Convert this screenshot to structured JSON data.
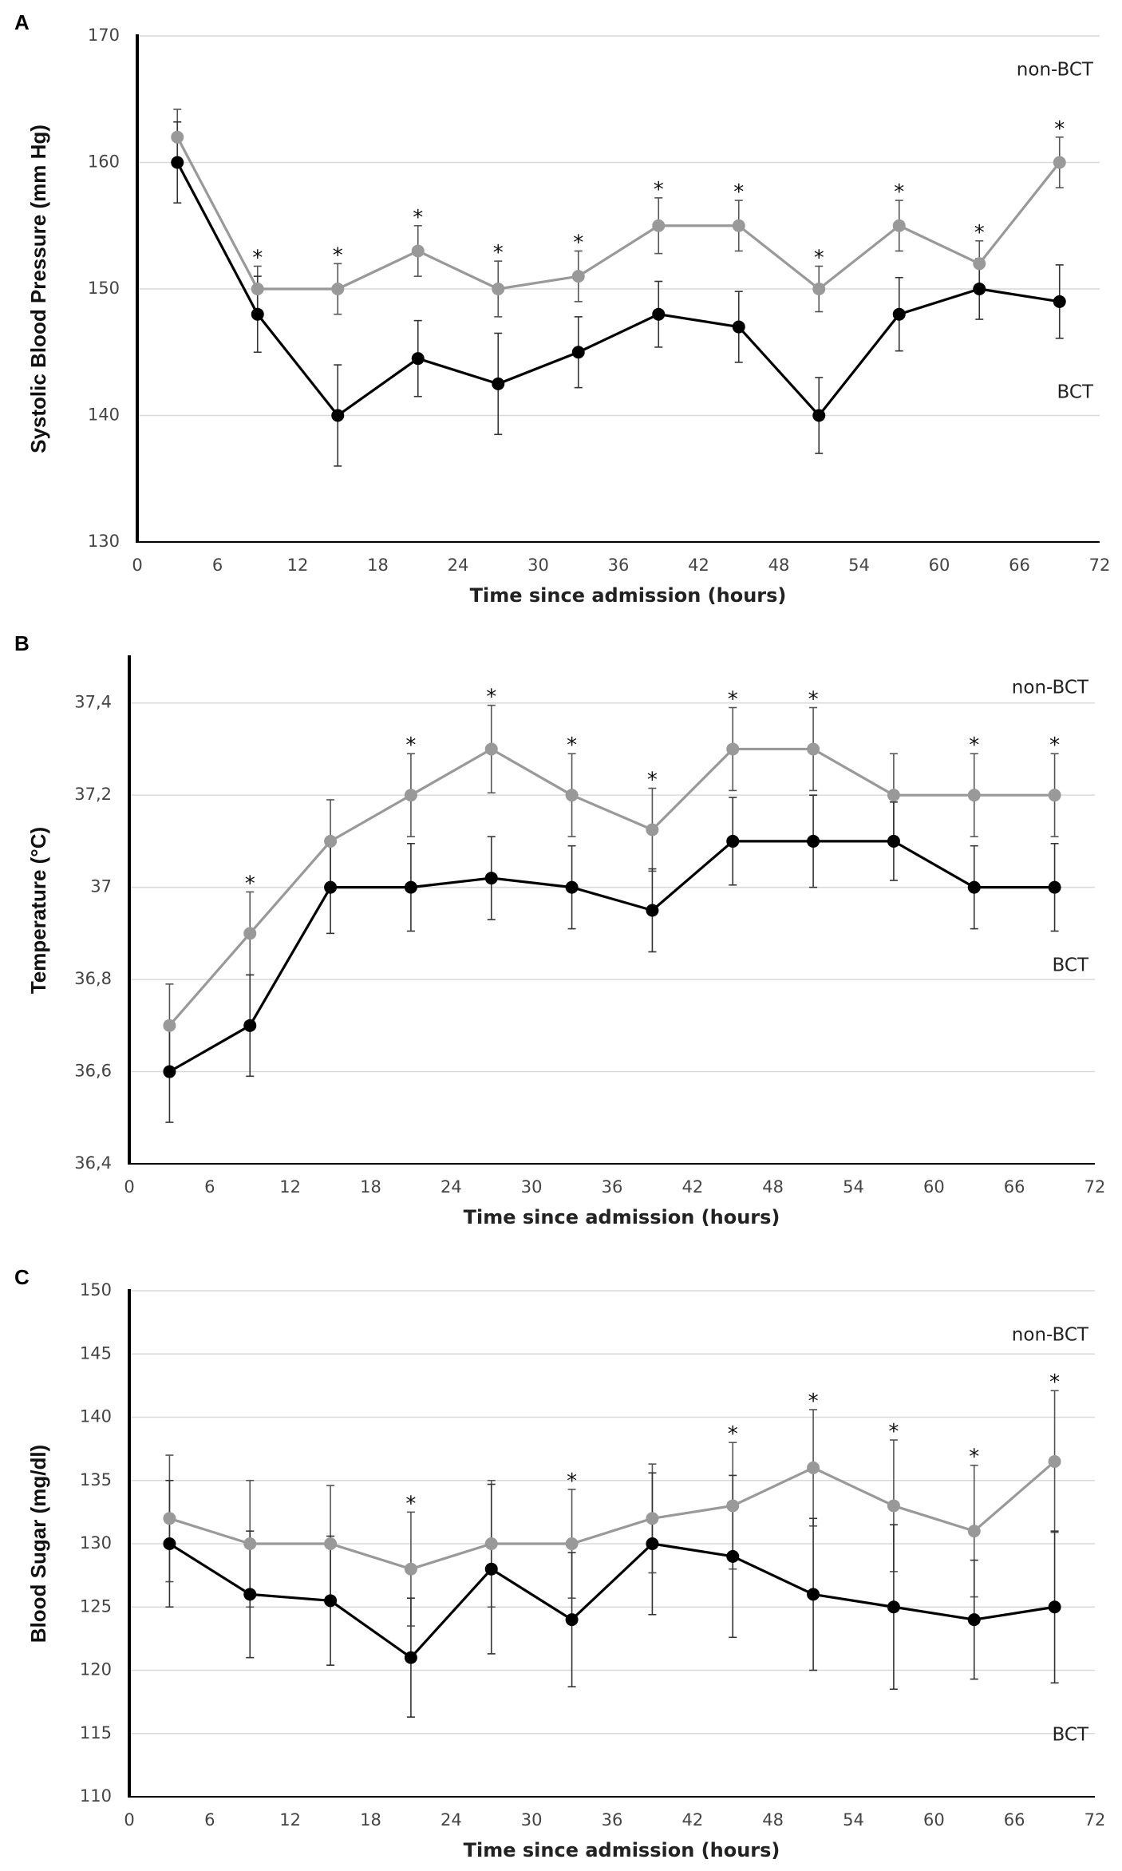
{
  "chart_data": [
    {
      "panel": "A",
      "type": "line",
      "title": "",
      "xlabel": "Time since admission (hours)",
      "ylabel": "Systolic Blood Pressure (mm Hg)",
      "xlim": [
        0,
        72
      ],
      "ylim": [
        130,
        170
      ],
      "xticks": [
        0,
        6,
        12,
        18,
        24,
        30,
        36,
        42,
        48,
        54,
        60,
        66,
        72
      ],
      "xtick_labels": [
        "0",
        "6",
        "12",
        "18",
        "24",
        "30",
        "36",
        "42",
        "48",
        "54",
        "60",
        "66",
        "72"
      ],
      "yticks": [
        130,
        140,
        150,
        160,
        170
      ],
      "ytick_labels": [
        "130",
        "140",
        "150",
        "160",
        "170"
      ],
      "x": [
        3,
        9,
        15,
        21,
        27,
        33,
        39,
        45,
        51,
        57,
        63,
        69
      ],
      "series": [
        {
          "name": "non-BCT",
          "color": "#999999",
          "values": [
            162,
            150,
            150,
            153,
            150,
            151,
            155,
            155,
            150,
            155,
            152,
            160
          ],
          "errors": [
            2.2,
            1.8,
            2.0,
            2.0,
            2.2,
            2.0,
            2.2,
            2.0,
            1.8,
            2.0,
            1.8,
            2.0
          ]
        },
        {
          "name": "BCT",
          "color": "#000000",
          "values": [
            160,
            148,
            140,
            144.5,
            142.5,
            145,
            148,
            147,
            140,
            148,
            150,
            149
          ],
          "errors": [
            3.2,
            3.0,
            4.0,
            3.0,
            4.0,
            2.8,
            2.6,
            2.8,
            3.0,
            2.9,
            2.4,
            2.9
          ]
        }
      ],
      "significance": [
        false,
        true,
        true,
        true,
        true,
        true,
        true,
        true,
        true,
        true,
        true,
        true
      ],
      "star_symbol": "*"
    },
    {
      "panel": "B",
      "type": "line",
      "title": "",
      "xlabel": "Time since admission (hours)",
      "ylabel": "Temperature (°C)",
      "xlim": [
        0,
        72
      ],
      "ylim": [
        36.4,
        37.5
      ],
      "xticks": [
        0,
        6,
        12,
        18,
        24,
        30,
        36,
        42,
        48,
        54,
        60,
        66,
        72
      ],
      "xtick_labels": [
        "0",
        "6",
        "12",
        "18",
        "24",
        "30",
        "36",
        "42",
        "48",
        "54",
        "60",
        "66",
        "72"
      ],
      "yticks": [
        36.4,
        36.6,
        36.8,
        37,
        37.2,
        37.4
      ],
      "ytick_labels": [
        "36,4",
        "36,6",
        "36,8",
        "37",
        "37,2",
        "37,4"
      ],
      "x": [
        3,
        9,
        15,
        21,
        27,
        33,
        39,
        45,
        51,
        57,
        63,
        69
      ],
      "series": [
        {
          "name": "non-BCT",
          "color": "#999999",
          "values": [
            36.7,
            36.9,
            37.1,
            37.2,
            37.3,
            37.2,
            37.125,
            37.3,
            37.3,
            37.2,
            37.2,
            37.2
          ],
          "errors": [
            0.09,
            0.09,
            0.09,
            0.09,
            0.095,
            0.09,
            0.09,
            0.09,
            0.09,
            0.09,
            0.09,
            0.09
          ]
        },
        {
          "name": "BCT",
          "color": "#000000",
          "values": [
            36.6,
            36.7,
            37.0,
            37.0,
            37.02,
            37.0,
            36.95,
            37.1,
            37.1,
            37.1,
            37.0,
            37.0
          ],
          "errors": [
            0.11,
            0.11,
            0.1,
            0.095,
            0.09,
            0.09,
            0.09,
            0.095,
            0.1,
            0.085,
            0.09,
            0.095
          ]
        }
      ],
      "significance": [
        false,
        true,
        false,
        true,
        true,
        true,
        true,
        true,
        true,
        false,
        true,
        true
      ],
      "star_symbol": "*"
    },
    {
      "panel": "C",
      "type": "line",
      "title": "",
      "xlabel": "Time since admission (hours)",
      "ylabel": "Blood Sugar (mg/dl)",
      "xlim": [
        0,
        72
      ],
      "ylim": [
        110,
        150
      ],
      "xticks": [
        0,
        6,
        12,
        18,
        24,
        30,
        36,
        42,
        48,
        54,
        60,
        66,
        72
      ],
      "xtick_labels": [
        "0",
        "6",
        "12",
        "18",
        "24",
        "30",
        "36",
        "42",
        "48",
        "54",
        "60",
        "66",
        "72"
      ],
      "yticks": [
        110,
        115,
        120,
        125,
        130,
        135,
        140,
        145,
        150
      ],
      "ytick_labels": [
        "110",
        "115",
        "120",
        "125",
        "130",
        "135",
        "140",
        "145",
        "150"
      ],
      "x": [
        3,
        9,
        15,
        21,
        27,
        33,
        39,
        45,
        51,
        57,
        63,
        69
      ],
      "series": [
        {
          "name": "non-BCT",
          "color": "#999999",
          "values": [
            132,
            130,
            130,
            128,
            130,
            130,
            132,
            133,
            136,
            133,
            131,
            136.5
          ],
          "errors": [
            5,
            5,
            4.6,
            4.5,
            5,
            4.3,
            4.3,
            5,
            4.6,
            5.2,
            5.2,
            5.6
          ]
        },
        {
          "name": "BCT",
          "color": "#000000",
          "values": [
            130,
            126,
            125.5,
            121,
            128,
            124,
            130,
            129,
            126,
            125,
            124,
            125
          ],
          "errors": [
            5,
            5,
            5.1,
            4.7,
            6.7,
            5.3,
            5.6,
            6.4,
            6,
            6.5,
            4.7,
            6
          ]
        }
      ],
      "significance": [
        false,
        false,
        false,
        true,
        false,
        true,
        false,
        true,
        true,
        true,
        true,
        true
      ],
      "star_symbol": "*"
    }
  ]
}
